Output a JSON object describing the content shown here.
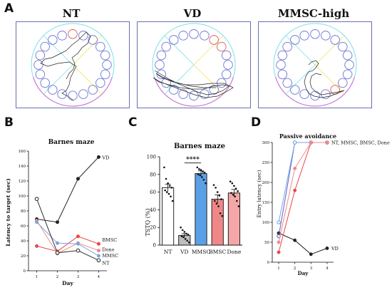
{
  "panels": {
    "a": {
      "letter": "A",
      "titles": [
        "NT",
        "VD",
        "MMSC-high"
      ]
    },
    "b": {
      "letter": "B"
    },
    "c": {
      "letter": "C"
    },
    "d": {
      "letter": "D"
    }
  },
  "chart_data": [
    {
      "id": "barnes-latency",
      "type": "line",
      "title": "Barnes maze",
      "xlabel": "Day",
      "ylabel": "Latency to target (sec)",
      "x": [
        1,
        2,
        3,
        4
      ],
      "xlim": [
        0.6,
        4.4
      ],
      "ylim": [
        0,
        160
      ],
      "yticks": [
        0,
        20,
        40,
        60,
        80,
        100,
        120,
        140,
        160
      ],
      "grid": false,
      "series": [
        {
          "name": "VD",
          "values": [
            69,
            65,
            123,
            152
          ],
          "color": "#222222",
          "marker": "filled"
        },
        {
          "name": "BMSC",
          "values": [
            33,
            26,
            46,
            36
          ],
          "color": "#e8484b",
          "marker": "filled"
        },
        {
          "name": "Done",
          "values": [
            67,
            23,
            37,
            27
          ],
          "color": "#ef8a8a",
          "marker": "filled"
        },
        {
          "name": "MMSC",
          "values": [
            65,
            37,
            36,
            20
          ],
          "color": "#7aa6e0",
          "marker": "filled"
        },
        {
          "name": "NT",
          "values": [
            96,
            24,
            27,
            14
          ],
          "color": "#333333",
          "marker": "open"
        }
      ],
      "end_labels": [
        "VD",
        "BMSC",
        "Done",
        "MMSC",
        "NT"
      ]
    },
    {
      "id": "barnes-tstq",
      "type": "bar",
      "title": "Barnes maze",
      "ylabel": "TSTQ (%)",
      "categories": [
        "NT",
        "VD",
        "MMSC",
        "BMSC",
        "Done"
      ],
      "values": [
        65,
        11,
        81,
        52,
        59
      ],
      "errors": [
        4,
        2,
        3,
        5,
        4
      ],
      "colors": [
        "#ffffff",
        "#bdbdbd",
        "#5aa0e6",
        "#f08787",
        "#f4a7a7"
      ],
      "ylim": [
        0,
        100
      ],
      "yticks": [
        0,
        20,
        40,
        60,
        80,
        100
      ],
      "points": [
        [
          88,
          75,
          70,
          67,
          65,
          62,
          60,
          58,
          55,
          50
        ],
        [
          20,
          17,
          15,
          13,
          12,
          10,
          9,
          7,
          5,
          3
        ],
        [
          88,
          86,
          85,
          83,
          82,
          80,
          79,
          77,
          74,
          70
        ],
        [
          68,
          65,
          60,
          56,
          52,
          50,
          47,
          44,
          36,
          33
        ],
        [
          72,
          70,
          67,
          64,
          61,
          59,
          57,
          55,
          50,
          44
        ]
      ],
      "annotation": {
        "text": "****",
        "from": "VD",
        "to": "MMSC",
        "y": 93
      }
    },
    {
      "id": "passive-avoidance",
      "type": "line",
      "title": "Passive avoidance",
      "xlabel": "Day",
      "ylabel": "Entry latency (sec)",
      "x": [
        1,
        2,
        3,
        4
      ],
      "xlim": [
        0.6,
        4.4
      ],
      "ylim": [
        0,
        300
      ],
      "yticks": [
        0,
        50,
        100,
        150,
        200,
        250,
        300
      ],
      "grid": false,
      "series": [
        {
          "name": "VD",
          "values": [
            73,
            55,
            20,
            35
          ],
          "color": "#222222",
          "marker": "filled"
        },
        {
          "name": "NT",
          "values": [
            65,
            300,
            300,
            300
          ],
          "color": "#5b63c9",
          "marker": "open"
        },
        {
          "name": "MMSC",
          "values": [
            100,
            300,
            300,
            300
          ],
          "color": "#7aa6e0",
          "marker": "open"
        },
        {
          "name": "BMSC",
          "values": [
            25,
            180,
            300,
            300
          ],
          "color": "#e8484b",
          "marker": "filled"
        },
        {
          "name": "Done",
          "values": [
            50,
            235,
            300,
            300
          ],
          "color": "#ef8a8a",
          "marker": "filled"
        }
      ],
      "labels": [
        {
          "text": "NT, MMSC, BMSC, Done",
          "series": "NT"
        },
        {
          "text": "VD",
          "series": "VD"
        }
      ]
    }
  ]
}
